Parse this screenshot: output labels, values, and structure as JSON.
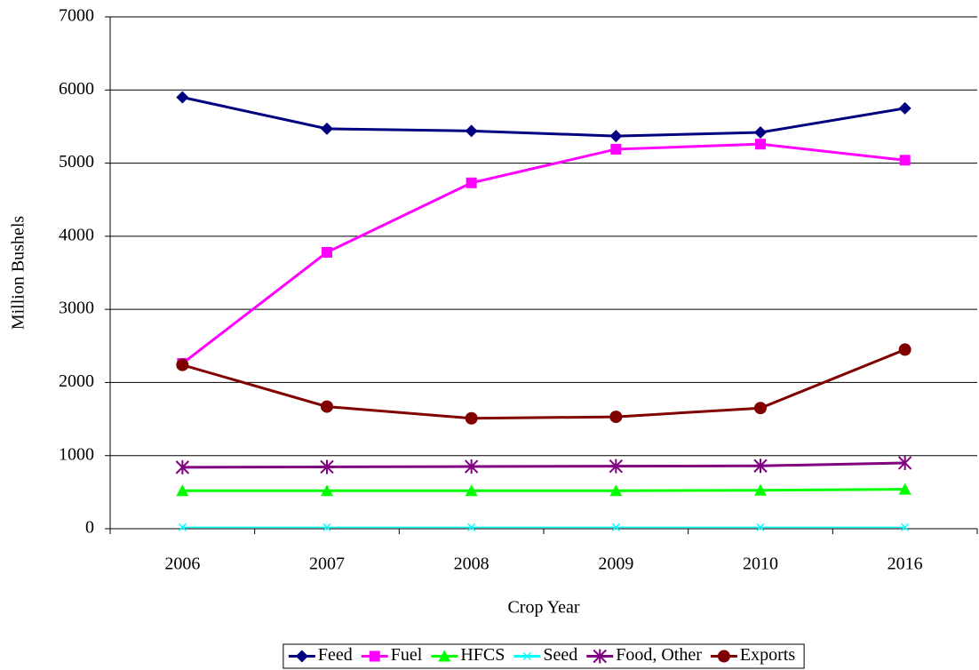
{
  "chart_data": {
    "type": "line",
    "x_label": "Crop Year",
    "y_label": "Million Bushels",
    "categories": [
      "2006",
      "2007",
      "2008",
      "2009",
      "2010",
      "2016"
    ],
    "series": [
      {
        "name": "Feed",
        "color": "#000080",
        "marker": "diamond",
        "values": [
          5900,
          5470,
          5440,
          5370,
          5420,
          5750
        ]
      },
      {
        "name": "Fuel",
        "color": "#ff00ff",
        "marker": "square",
        "values": [
          2260,
          3780,
          4730,
          5190,
          5260,
          5040
        ]
      },
      {
        "name": "HFCS",
        "color": "#00ff00",
        "marker": "triangle",
        "values": [
          520,
          520,
          520,
          520,
          525,
          540
        ]
      },
      {
        "name": "Seed",
        "color": "#00ffff",
        "marker": "x",
        "values": [
          20,
          20,
          20,
          20,
          20,
          20
        ]
      },
      {
        "name": "Food, Other",
        "color": "#800080",
        "marker": "asterisk",
        "values": [
          840,
          845,
          850,
          855,
          860,
          900
        ]
      },
      {
        "name": "Exports",
        "color": "#800000",
        "marker": "circle",
        "values": [
          2240,
          1670,
          1510,
          1530,
          1650,
          2450
        ]
      }
    ],
    "ylim": [
      0,
      7000
    ],
    "yticks": [
      0,
      1000,
      2000,
      3000,
      4000,
      5000,
      6000,
      7000
    ],
    "grid": true,
    "legend": "bottom"
  }
}
